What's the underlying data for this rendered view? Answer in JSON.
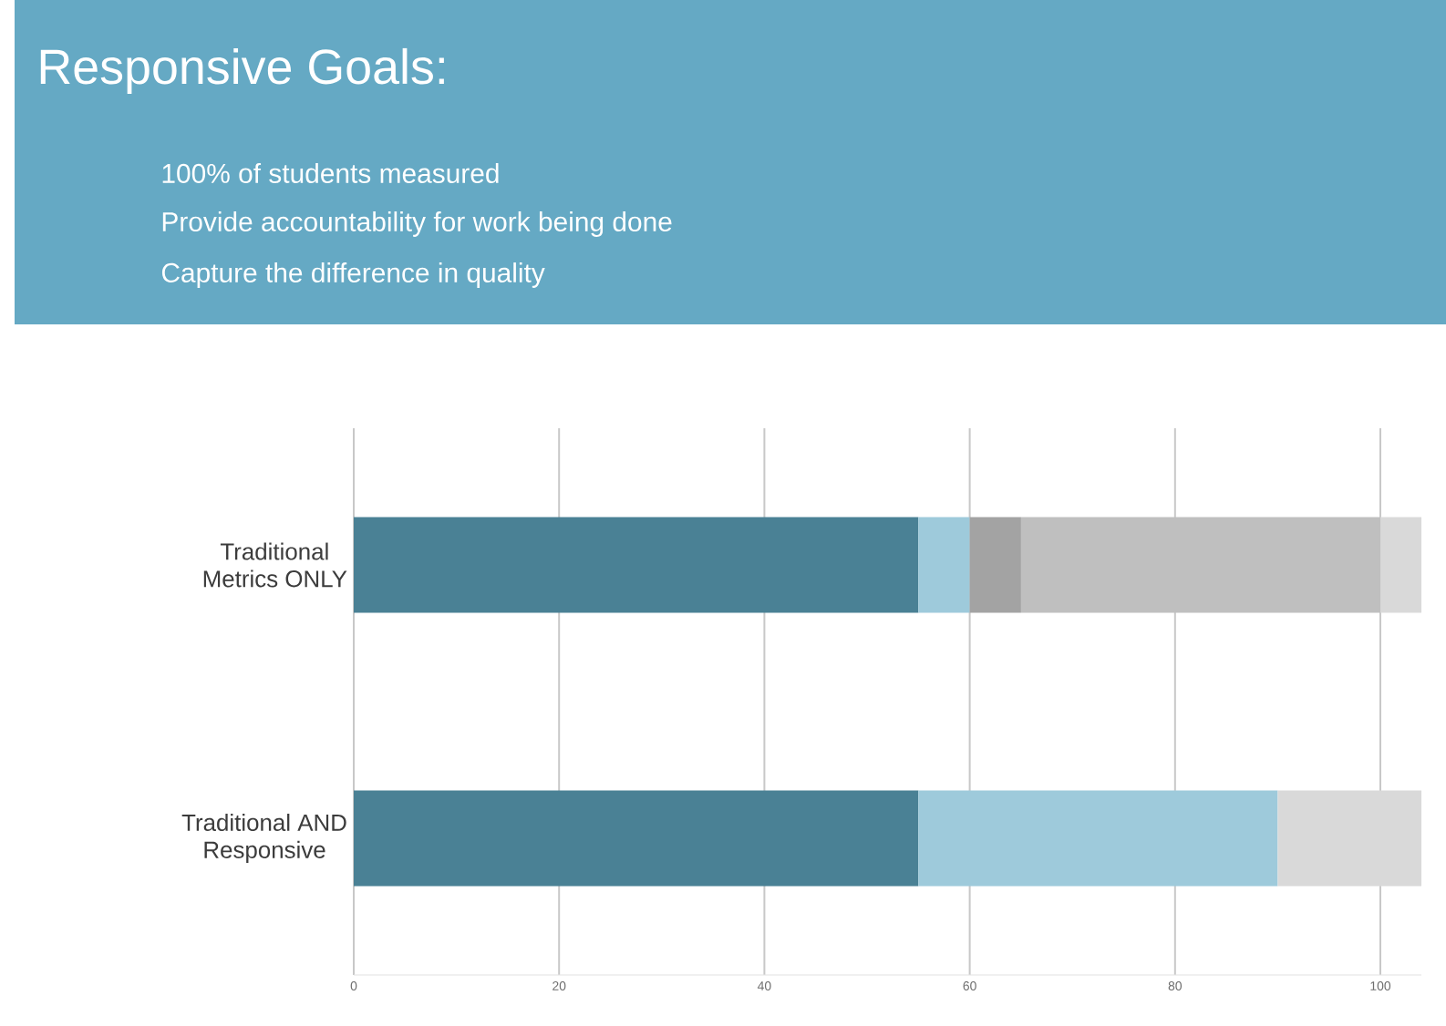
{
  "chart_data": {
    "type": "bar",
    "orientation": "horizontal",
    "stacked": true,
    "title": "Responsive Goals:",
    "annotations": [
      "100% of students measured",
      "Provide accountability for work being done",
      "Capture the difference in quality"
    ],
    "categories": [
      "Traditional\nMetrics ONLY",
      "Traditional AND\nResponsive"
    ],
    "series": [
      {
        "color": "#4a8195",
        "values": [
          55,
          55
        ]
      },
      {
        "color": "#9ecadb",
        "values": [
          5,
          35
        ]
      },
      {
        "color": "#a3a3a3",
        "values": [
          5,
          null
        ]
      },
      {
        "color": "#bfbfbf",
        "values": [
          35,
          null
        ]
      },
      {
        "color": "#d9d9d9",
        "values": [
          4,
          14
        ]
      }
    ],
    "xlim": [
      0,
      104
    ],
    "xticks": [
      0,
      20,
      40,
      60,
      80,
      100
    ],
    "grid": "x"
  }
}
